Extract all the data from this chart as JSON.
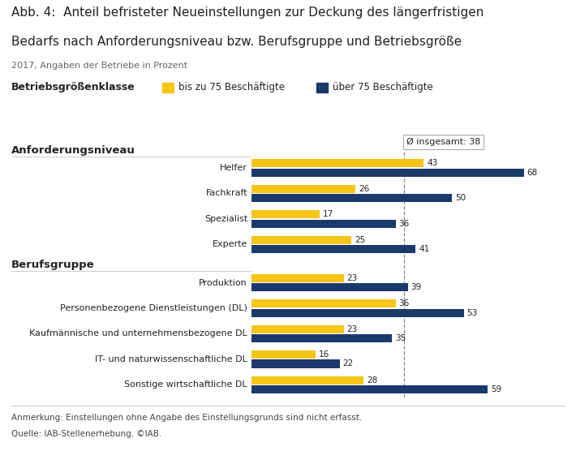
{
  "title_line1": "Abb. 4:  Anteil befristeter Neueinstellungen zur Deckung des längerfristigen",
  "title_line2": "Bedarfs nach Anforderungsniveau bzw. Berufsgruppe und Betriebsgröße",
  "subtitle": "2017, Angaben der Betriebe in Prozent",
  "legend_label": "Betriebsgrößenklasse",
  "legend_item1": "bis zu 75 Beschäftigte",
  "legend_item2": "über 75 Beschäftigte",
  "avg_label": "Ø insgesamt: 38",
  "avg_value": 38,
  "section1_title": "Anforderungsniveau",
  "section2_title": "Berufsgruppe",
  "categories_anforderung": [
    "Helfer",
    "Fachkraft",
    "Spezialist",
    "Experte"
  ],
  "values_anforderung_small": [
    43,
    26,
    17,
    25
  ],
  "values_anforderung_large": [
    68,
    50,
    36,
    41
  ],
  "categories_beruf": [
    "Produktion",
    "Personenbezogene Dienstleistungen (DL)",
    "Kaufmännische und unternehmensbezogene DL",
    "IT- und naturwissenschaftliche DL",
    "Sonstige wirtschaftliche DL"
  ],
  "values_beruf_small": [
    23,
    36,
    23,
    16,
    28
  ],
  "values_beruf_large": [
    39,
    53,
    35,
    22,
    59
  ],
  "color_small": "#F5C518",
  "color_large": "#1B3A6B",
  "bar_height": 0.32,
  "footnote1": "Anmerkung: Einstellungen ohne Angabe des Einstellungsgrunds sind nicht erfasst.",
  "footnote2": "Quelle: IAB-Stellenerhebung. ©IAB.",
  "bg_color": "#FFFFFF",
  "text_color": "#222222",
  "section_title_color": "#1B3A6B",
  "xlim": [
    0,
    78
  ]
}
